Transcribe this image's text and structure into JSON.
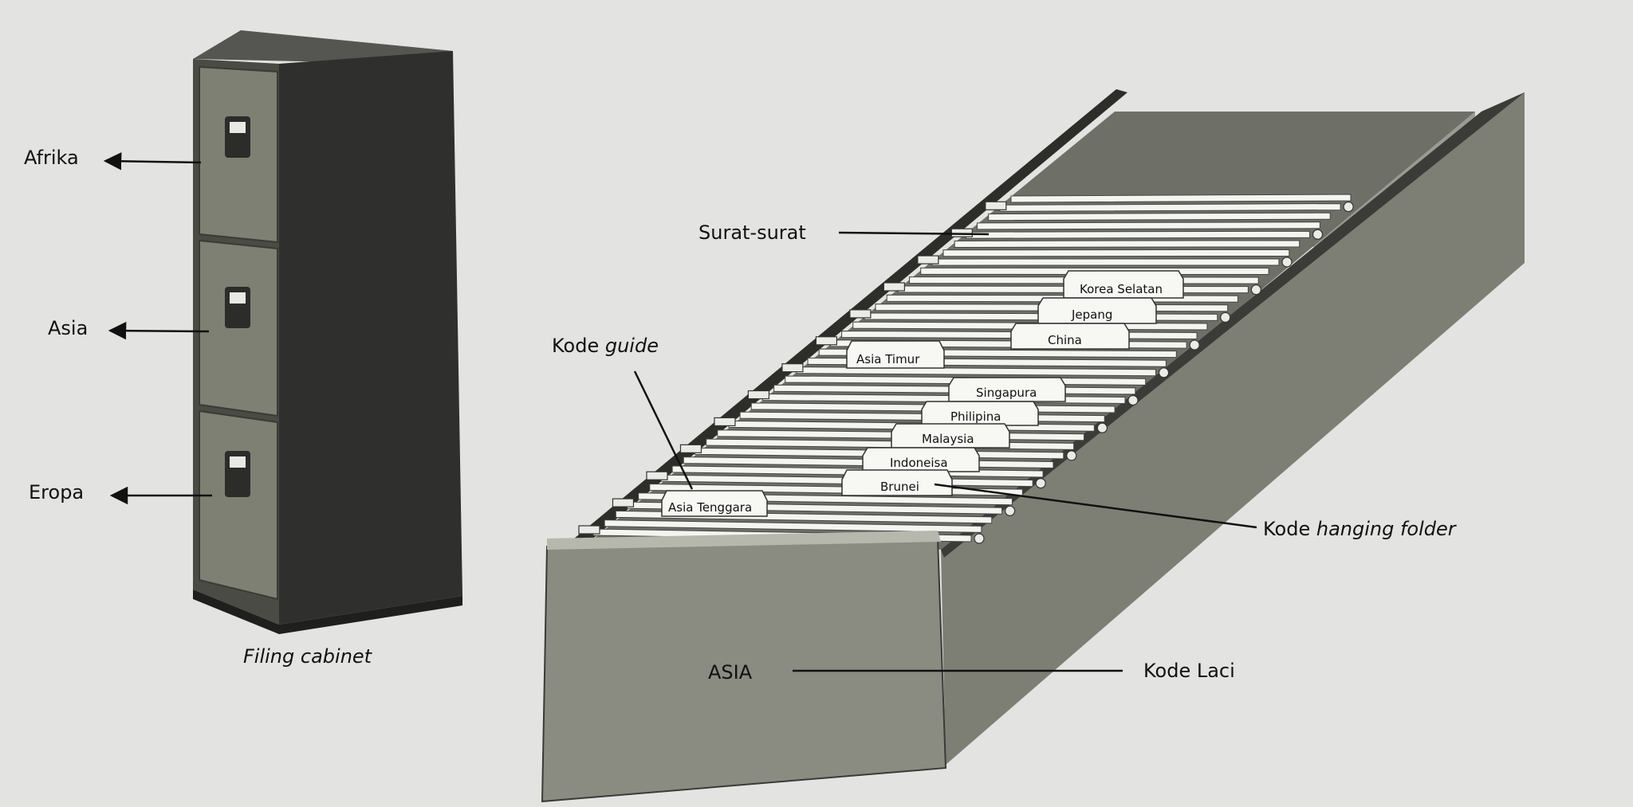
{
  "cabinet": {
    "caption": "Filing cabinet",
    "drawers": [
      {
        "label": "Afrika"
      },
      {
        "label": "Asia"
      },
      {
        "label": "Eropa"
      }
    ]
  },
  "drawer": {
    "front_label": "ASIA",
    "callouts": {
      "letters": "Surat-surat",
      "guide_code_prefix": "Kode ",
      "guide_code_em": "guide",
      "hanging_code_prefix": "Kode ",
      "hanging_code_em": "hanging folder",
      "drawer_code": "Kode Laci"
    },
    "tabs": [
      "Korea Selatan",
      "Jepang",
      "China",
      "Asia Timur",
      "Singapura",
      "Philipina",
      "Malaysia",
      "Indoneisa",
      "Brunei",
      "Asia Tenggara"
    ]
  },
  "colors": {
    "cabinet_body": "#3a3a38",
    "drawer_face": "#7d7f72",
    "drawer_box": "#8a8c82",
    "paper": "#f4f4f1"
  }
}
